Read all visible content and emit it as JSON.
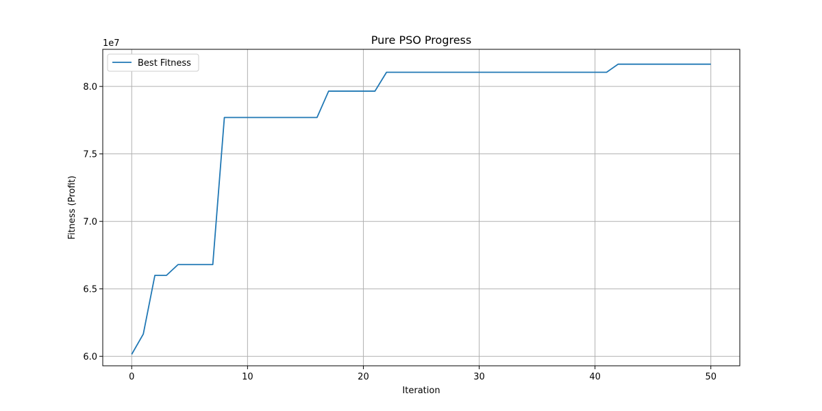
{
  "chart_data": {
    "type": "line",
    "title": "Pure PSO Progress",
    "xlabel": "Iteration",
    "ylabel": "Fitness (Profit)",
    "y_offset_label": "1e7",
    "xlim": [
      -2.5,
      52.5
    ],
    "ylim": [
      59.3,
      82.75
    ],
    "y_scale_factor": 1000000,
    "x_ticks": [
      0,
      10,
      20,
      30,
      40,
      50
    ],
    "x_tick_labels": [
      "0",
      "10",
      "20",
      "30",
      "40",
      "50"
    ],
    "y_ticks": [
      60,
      65,
      70,
      75,
      80
    ],
    "y_tick_labels": [
      "6.0",
      "6.5",
      "7.0",
      "7.5",
      "8.0"
    ],
    "grid": true,
    "legend_position": "upper left",
    "series": [
      {
        "name": "Best Fitness",
        "color": "#1f77b4",
        "x": [
          0,
          1,
          2,
          3,
          4,
          5,
          6,
          7,
          8,
          9,
          10,
          11,
          12,
          13,
          14,
          15,
          16,
          17,
          18,
          19,
          20,
          21,
          22,
          23,
          24,
          25,
          26,
          27,
          28,
          29,
          30,
          31,
          32,
          33,
          34,
          35,
          36,
          37,
          38,
          39,
          40,
          41,
          42,
          43,
          44,
          45,
          46,
          47,
          48,
          49,
          50
        ],
        "y": [
          60.15,
          61.65,
          66.0,
          66.0,
          66.8,
          66.8,
          66.8,
          66.8,
          77.7,
          77.7,
          77.7,
          77.7,
          77.7,
          77.7,
          77.7,
          77.7,
          77.7,
          79.65,
          79.65,
          79.65,
          79.65,
          79.65,
          81.05,
          81.05,
          81.05,
          81.05,
          81.05,
          81.05,
          81.05,
          81.05,
          81.05,
          81.05,
          81.05,
          81.05,
          81.05,
          81.05,
          81.05,
          81.05,
          81.05,
          81.05,
          81.05,
          81.05,
          81.65,
          81.65,
          81.65,
          81.65,
          81.65,
          81.65,
          81.65,
          81.65,
          81.65
        ]
      }
    ]
  }
}
